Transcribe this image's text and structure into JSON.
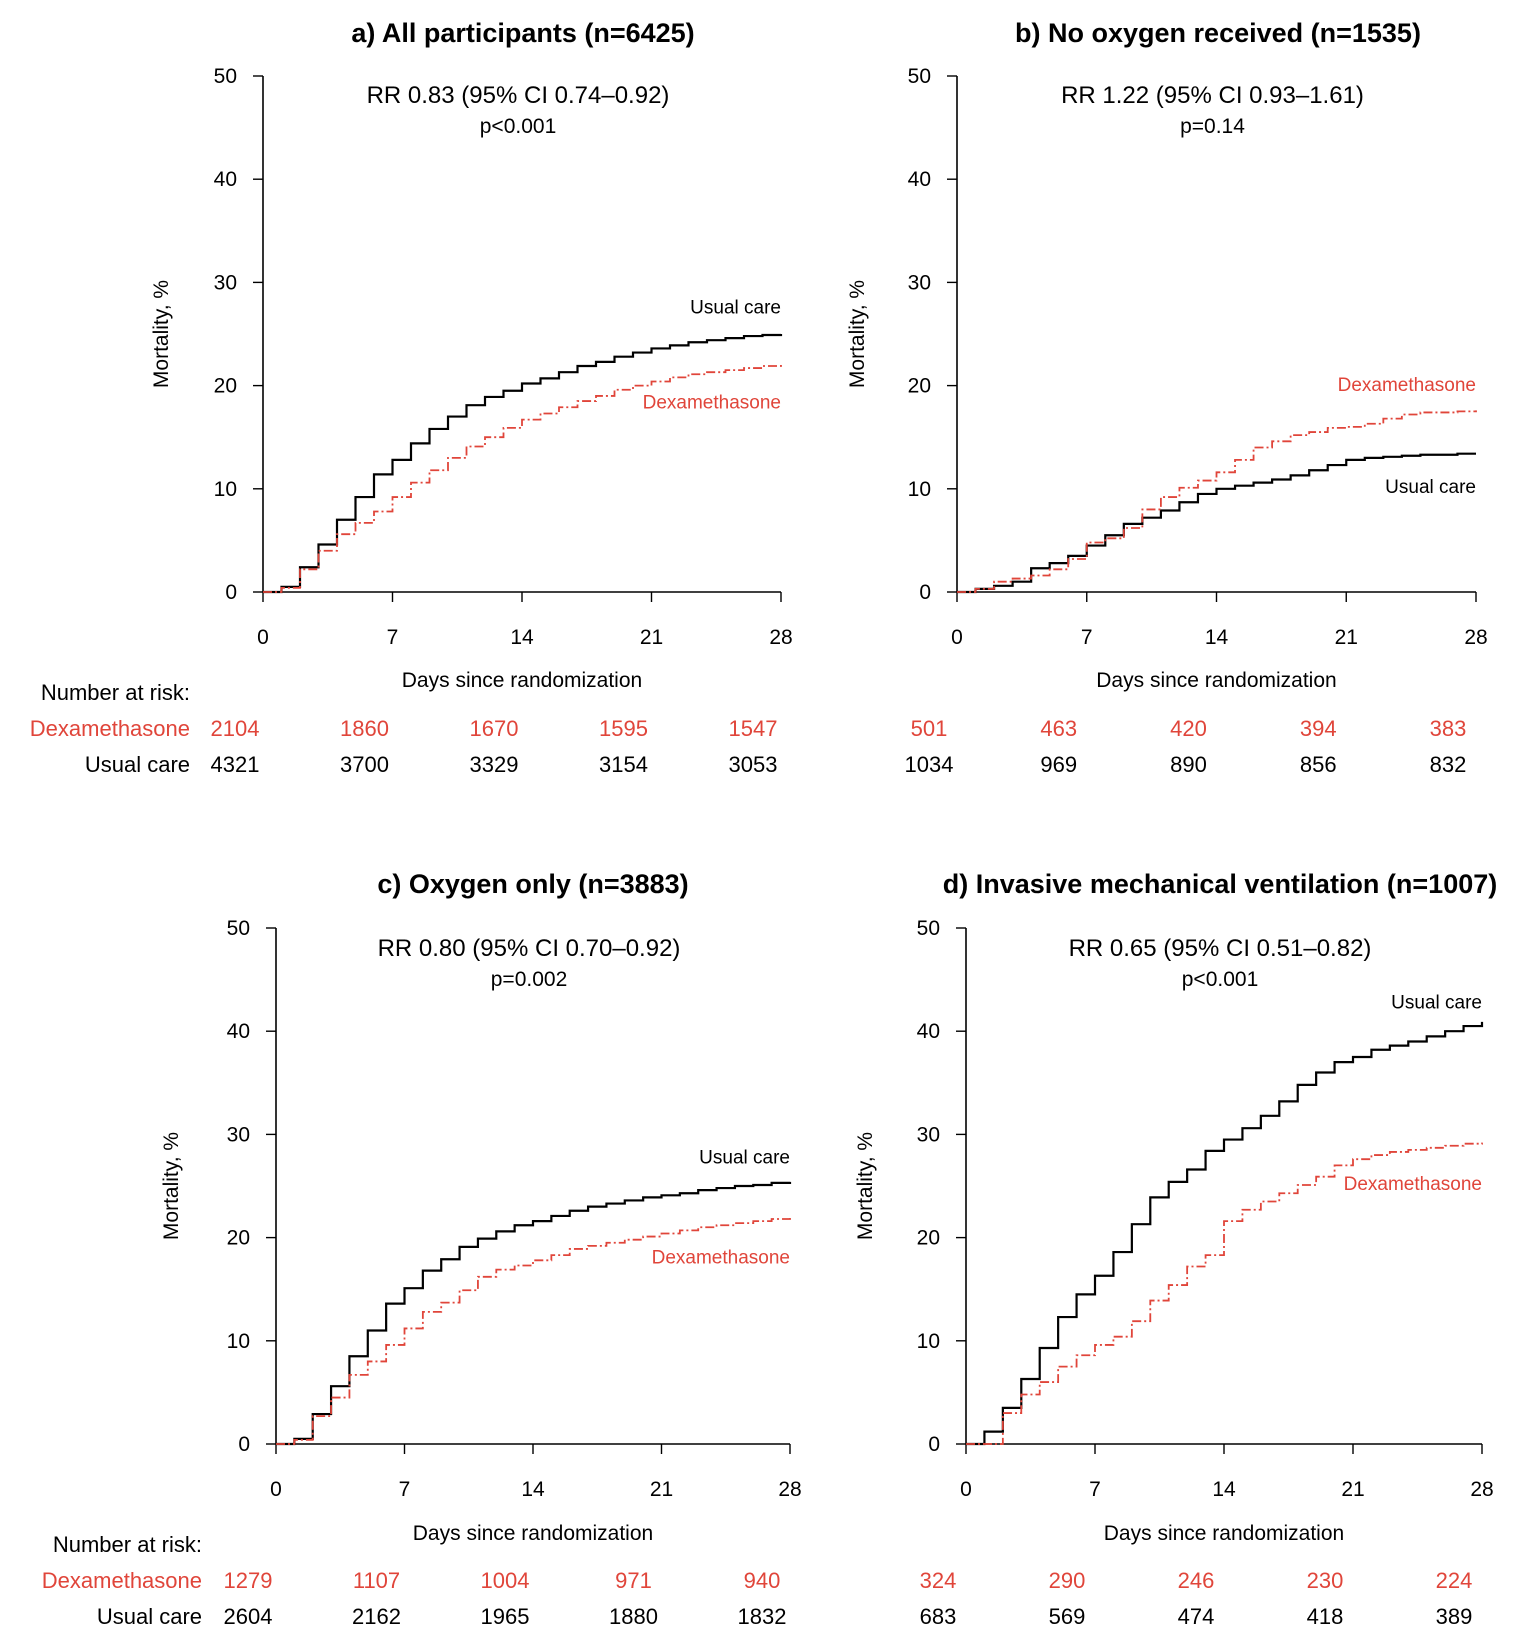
{
  "colors": {
    "dexamethasone": "#e0453a",
    "usual_care": "#000000"
  },
  "chart_data": [
    {
      "type": "line",
      "title": "a) All participants (n=6425)",
      "stat_text": "RR 0.83 (95% CI 0.74–0.92)",
      "p_text": "p<0.001",
      "xlabel": "Days since randomization",
      "ylabel": "Mortality, %",
      "xlim": [
        0,
        28
      ],
      "ylim": [
        0,
        50
      ],
      "xticks": [
        0,
        7,
        14,
        21,
        28
      ],
      "yticks": [
        0,
        10,
        20,
        30,
        40,
        50
      ],
      "step": true,
      "series": [
        {
          "name": "Usual care",
          "key": "usual",
          "x": [
            0,
            1,
            2,
            3,
            4,
            5,
            6,
            7,
            8,
            9,
            10,
            11,
            12,
            13,
            14,
            15,
            16,
            17,
            18,
            19,
            20,
            21,
            22,
            23,
            24,
            25,
            26,
            27,
            28
          ],
          "y": [
            0,
            0.5,
            2.4,
            4.6,
            7.0,
            9.2,
            11.4,
            12.8,
            14.4,
            15.8,
            17.0,
            18.1,
            18.9,
            19.5,
            20.2,
            20.7,
            21.3,
            21.9,
            22.3,
            22.8,
            23.2,
            23.6,
            23.9,
            24.2,
            24.4,
            24.6,
            24.8,
            24.9,
            25.0
          ]
        },
        {
          "name": "Dexamethasone",
          "key": "dex",
          "x": [
            0,
            1,
            2,
            3,
            4,
            5,
            6,
            7,
            8,
            9,
            10,
            11,
            12,
            13,
            14,
            15,
            16,
            17,
            18,
            19,
            20,
            21,
            22,
            23,
            24,
            25,
            26,
            27,
            28
          ],
          "y": [
            0,
            0.4,
            2.2,
            4.0,
            5.6,
            6.7,
            7.8,
            9.2,
            10.6,
            11.8,
            13.0,
            14.1,
            15.0,
            15.9,
            16.7,
            17.3,
            17.9,
            18.5,
            19.0,
            19.6,
            20.0,
            20.4,
            20.8,
            21.1,
            21.3,
            21.5,
            21.7,
            21.9,
            22.0
          ]
        }
      ],
      "label_positions": {
        "usual": [
          28,
          27.0
        ],
        "dex": [
          28,
          17.8
        ]
      },
      "risk_table": {
        "header": "Number at risk:",
        "at_days": [
          0,
          7,
          14,
          21,
          28
        ],
        "rows": [
          {
            "name": "Dexamethasone",
            "key": "dex",
            "values": [
              2104,
              1860,
              1670,
              1595,
              1547
            ]
          },
          {
            "name": "Usual care",
            "key": "usual",
            "values": [
              4321,
              3700,
              3329,
              3154,
              3053
            ]
          }
        ]
      }
    },
    {
      "type": "line",
      "title": "b) No oxygen received (n=1535)",
      "stat_text": "RR 1.22 (95% CI 0.93–1.61)",
      "p_text": "p=0.14",
      "xlabel": "Days since randomization",
      "ylabel": "Mortality, %",
      "xlim": [
        0,
        28
      ],
      "ylim": [
        0,
        50
      ],
      "xticks": [
        0,
        7,
        14,
        21,
        28
      ],
      "yticks": [
        0,
        10,
        20,
        30,
        40,
        50
      ],
      "step": true,
      "series": [
        {
          "name": "Usual care",
          "key": "usual",
          "x": [
            0,
            1,
            2,
            3,
            4,
            5,
            6,
            7,
            8,
            9,
            10,
            11,
            12,
            13,
            14,
            15,
            16,
            17,
            18,
            19,
            20,
            21,
            22,
            23,
            24,
            25,
            26,
            27,
            28
          ],
          "y": [
            0,
            0.3,
            0.6,
            1.0,
            2.3,
            2.8,
            3.5,
            4.5,
            5.5,
            6.6,
            7.2,
            7.9,
            8.7,
            9.5,
            10.0,
            10.3,
            10.6,
            10.9,
            11.3,
            11.8,
            12.3,
            12.8,
            13.0,
            13.1,
            13.2,
            13.3,
            13.3,
            13.4,
            13.4
          ]
        },
        {
          "name": "Dexamethasone",
          "key": "dex",
          "x": [
            0,
            1,
            2,
            3,
            4,
            5,
            6,
            7,
            8,
            9,
            10,
            11,
            12,
            13,
            14,
            15,
            16,
            17,
            18,
            19,
            20,
            21,
            22,
            23,
            24,
            25,
            26,
            27,
            28
          ],
          "y": [
            0,
            0.3,
            1.0,
            1.3,
            1.6,
            2.2,
            3.2,
            4.8,
            5.2,
            6.2,
            8.0,
            9.2,
            10.1,
            10.8,
            11.6,
            12.8,
            14.0,
            14.6,
            15.2,
            15.5,
            15.9,
            16.0,
            16.3,
            16.8,
            17.2,
            17.4,
            17.4,
            17.5,
            17.6
          ]
        }
      ],
      "label_positions": {
        "usual": [
          28,
          9.6
        ],
        "dex": [
          28,
          19.5
        ]
      },
      "risk_table": {
        "header": "",
        "at_days": [
          0,
          7,
          14,
          21,
          28
        ],
        "rows": [
          {
            "name": "",
            "key": "dex",
            "values": [
              501,
              463,
              420,
              394,
              383
            ]
          },
          {
            "name": "",
            "key": "usual",
            "values": [
              1034,
              969,
              890,
              856,
              832
            ]
          }
        ]
      }
    },
    {
      "type": "line",
      "title": "c) Oxygen only (n=3883)",
      "stat_text": "RR 0.80 (95% CI 0.70–0.92)",
      "p_text": "p=0.002",
      "xlabel": "Days since randomization",
      "ylabel": "Mortality, %",
      "xlim": [
        0,
        28
      ],
      "ylim": [
        0,
        50
      ],
      "xticks": [
        0,
        7,
        14,
        21,
        28
      ],
      "yticks": [
        0,
        10,
        20,
        30,
        40,
        50
      ],
      "step": true,
      "series": [
        {
          "name": "Usual care",
          "key": "usual",
          "x": [
            0,
            1,
            2,
            3,
            4,
            5,
            6,
            7,
            8,
            9,
            10,
            11,
            12,
            13,
            14,
            15,
            16,
            17,
            18,
            19,
            20,
            21,
            22,
            23,
            24,
            25,
            26,
            27,
            28
          ],
          "y": [
            0,
            0.5,
            2.9,
            5.6,
            8.5,
            11.0,
            13.6,
            15.1,
            16.8,
            17.9,
            19.1,
            19.9,
            20.6,
            21.2,
            21.6,
            22.1,
            22.6,
            23.0,
            23.3,
            23.6,
            23.9,
            24.1,
            24.3,
            24.6,
            24.8,
            25.0,
            25.1,
            25.3,
            25.4
          ]
        },
        {
          "name": "Dexamethasone",
          "key": "dex",
          "x": [
            0,
            1,
            2,
            3,
            4,
            5,
            6,
            7,
            8,
            9,
            10,
            11,
            12,
            13,
            14,
            15,
            16,
            17,
            18,
            19,
            20,
            21,
            22,
            23,
            24,
            25,
            26,
            27,
            28
          ],
          "y": [
            0,
            0.4,
            2.7,
            4.5,
            6.7,
            8.0,
            9.6,
            11.2,
            12.8,
            13.7,
            14.9,
            16.2,
            16.9,
            17.3,
            17.8,
            18.3,
            18.9,
            19.2,
            19.5,
            19.8,
            20.1,
            20.4,
            20.7,
            21.0,
            21.2,
            21.4,
            21.6,
            21.8,
            22.0
          ]
        }
      ],
      "label_positions": {
        "usual": [
          28,
          27.2
        ],
        "dex": [
          28,
          17.5
        ]
      },
      "risk_table": {
        "header": "Number at risk:",
        "at_days": [
          0,
          7,
          14,
          21,
          28
        ],
        "rows": [
          {
            "name": "Dexamethasone",
            "key": "dex",
            "values": [
              1279,
              1107,
              1004,
              971,
              940
            ]
          },
          {
            "name": "Usual care",
            "key": "usual",
            "values": [
              2604,
              2162,
              1965,
              1880,
              1832
            ]
          }
        ]
      }
    },
    {
      "type": "line",
      "title": "d) Invasive mechanical ventilation (n=1007)",
      "stat_text": "RR 0.65 (95% CI 0.51–0.82)",
      "p_text": "p<0.001",
      "xlabel": "Days since randomization",
      "ylabel": "Mortality, %",
      "xlim": [
        0,
        28
      ],
      "ylim": [
        0,
        50
      ],
      "xticks": [
        0,
        7,
        14,
        21,
        28
      ],
      "yticks": [
        0,
        10,
        20,
        30,
        40,
        50
      ],
      "step": true,
      "series": [
        {
          "name": "Usual care",
          "key": "usual",
          "x": [
            0,
            1,
            2,
            3,
            4,
            5,
            6,
            7,
            8,
            9,
            10,
            11,
            12,
            13,
            14,
            15,
            16,
            17,
            18,
            19,
            20,
            21,
            22,
            23,
            24,
            25,
            26,
            27,
            28
          ],
          "y": [
            0,
            1.2,
            3.5,
            6.3,
            9.3,
            12.3,
            14.5,
            16.3,
            18.6,
            21.3,
            23.9,
            25.4,
            26.6,
            28.4,
            29.5,
            30.6,
            31.8,
            33.2,
            34.8,
            36.0,
            37.0,
            37.5,
            38.2,
            38.6,
            39.0,
            39.5,
            40.0,
            40.5,
            40.9
          ]
        },
        {
          "name": "Dexamethasone",
          "key": "dex",
          "x": [
            0,
            1,
            2,
            3,
            4,
            5,
            6,
            7,
            8,
            9,
            10,
            11,
            12,
            13,
            14,
            15,
            16,
            17,
            18,
            19,
            20,
            21,
            22,
            23,
            24,
            25,
            26,
            27,
            28
          ],
          "y": [
            0,
            0.0,
            3.0,
            4.8,
            6.0,
            7.5,
            8.6,
            9.6,
            10.4,
            11.9,
            13.9,
            15.4,
            17.2,
            18.3,
            21.6,
            22.7,
            23.5,
            24.3,
            25.1,
            25.9,
            27.0,
            27.6,
            28.0,
            28.3,
            28.5,
            28.7,
            28.9,
            29.1,
            29.2
          ]
        }
      ],
      "label_positions": {
        "usual": [
          28,
          42.2
        ],
        "dex": [
          28,
          24.6
        ]
      },
      "risk_table": {
        "header": "",
        "at_days": [
          0,
          7,
          14,
          21,
          28
        ],
        "rows": [
          {
            "name": "",
            "key": "dex",
            "values": [
              324,
              290,
              246,
              230,
              224
            ]
          },
          {
            "name": "",
            "key": "usual",
            "values": [
              683,
              569,
              474,
              418,
              389
            ]
          }
        ]
      }
    }
  ]
}
